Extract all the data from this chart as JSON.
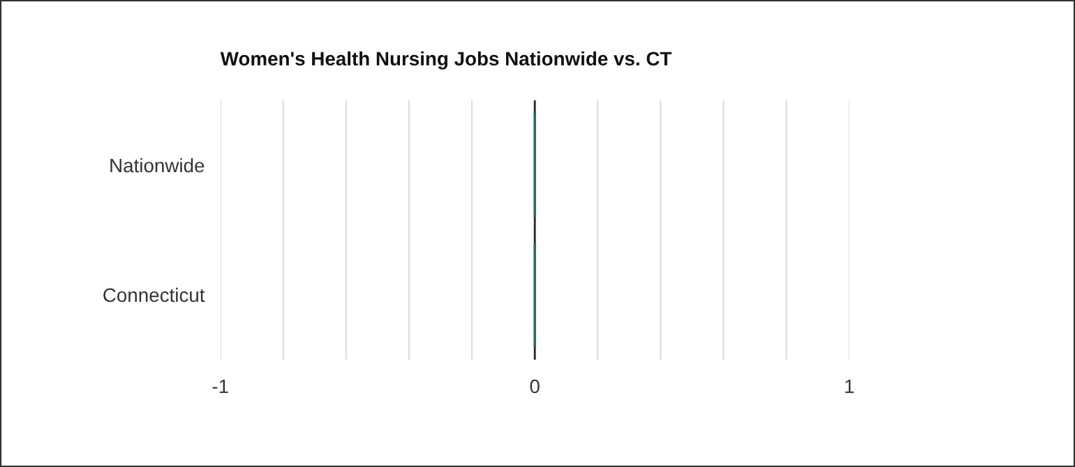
{
  "chart_data": {
    "type": "bar",
    "orientation": "horizontal",
    "title": "Women's Health Nursing Jobs Nationwide vs. CT",
    "categories": [
      "Nationwide",
      "Connecticut"
    ],
    "values": [
      0,
      0
    ],
    "color": "#2d6b66",
    "xlim": [
      -1,
      1
    ],
    "xticks": [
      -1,
      {
        "value": -0.8,
        "label": null
      },
      {
        "value": -0.6,
        "label": null
      },
      {
        "value": -0.4,
        "label": null
      },
      {
        "value": -0.2,
        "label": null
      },
      0,
      {
        "value": 0.2,
        "label": null
      },
      {
        "value": 0.4,
        "label": null
      },
      {
        "value": 0.6,
        "label": null
      },
      {
        "value": 0.8,
        "label": null
      },
      1
    ],
    "grid": "x",
    "legend": false
  }
}
